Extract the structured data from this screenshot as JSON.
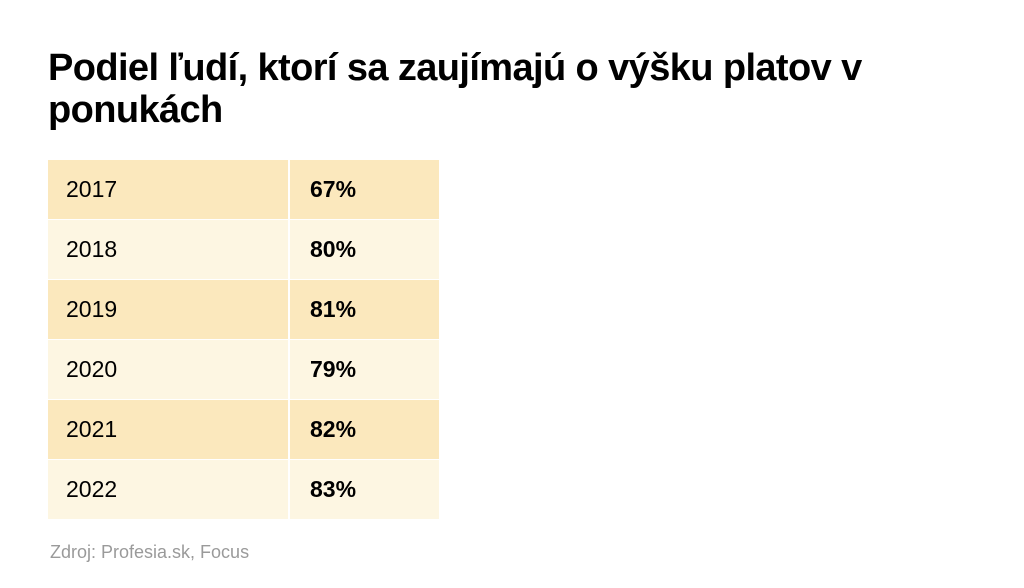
{
  "title": "Podiel ľudí, ktorí sa zaujímajú o výšku platov v ponukách",
  "source": "Zdroj: Profesia.sk, Focus",
  "colors": {
    "row_odd": "#fbe8bd",
    "row_even": "#fdf6e2",
    "source_text": "#9a9a9a"
  },
  "chart_data": {
    "type": "table",
    "title": "Podiel ľudí, ktorí sa zaujímajú o výšku platov v ponukách",
    "rows": [
      {
        "year": "2017",
        "value": "67%"
      },
      {
        "year": "2018",
        "value": "80%"
      },
      {
        "year": "2019",
        "value": "81%"
      },
      {
        "year": "2020",
        "value": "79%"
      },
      {
        "year": "2021",
        "value": "82%"
      },
      {
        "year": "2022",
        "value": "83%"
      }
    ]
  }
}
